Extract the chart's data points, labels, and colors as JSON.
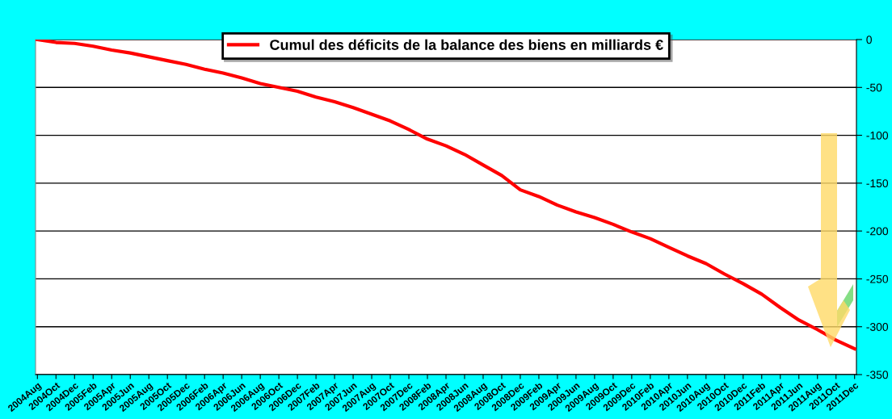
{
  "chart_data": {
    "type": "line",
    "categories": [
      "2004Aug",
      "2004Oct",
      "2004Dec",
      "2005Feb",
      "2005Apr",
      "2005Jun",
      "2005Aug",
      "2005Oct",
      "2005Dec",
      "2006Feb",
      "2006Apr",
      "2006Jun",
      "2006Aug",
      "2006Oct",
      "2006Dec",
      "2007Feb",
      "2007Apr",
      "2007Jun",
      "2007Aug",
      "2007Oct",
      "2007Dec",
      "2008Feb",
      "2008Apr",
      "2008Jun",
      "2008Aug",
      "2008Oct",
      "2008Dec",
      "2009Feb",
      "2009Apr",
      "2009Jun",
      "2009Aug",
      "2009Oct",
      "2009Dec",
      "2010Feb",
      "2010Apr",
      "2010Jun",
      "2010Aug",
      "2010Oct",
      "2010Dec",
      "2011Feb",
      "2011Apr",
      "2011Jun",
      "2011Aug",
      "2011Oct",
      "2011Dec"
    ],
    "series": [
      {
        "name": "Cumul des déficits de la balance des biens en milliards €",
        "color": "#ff0000",
        "values": [
          0,
          -3,
          -4,
          -7,
          -11,
          -14,
          -18,
          -22,
          -26,
          -31,
          -35,
          -40,
          -46,
          -50,
          -54,
          -60,
          -65,
          -71,
          -78,
          -85,
          -94,
          -104,
          -111,
          -120,
          -131,
          -142,
          -157,
          -164,
          -173,
          -180,
          -186,
          -193,
          -201,
          -208,
          -217,
          -226,
          -234,
          -245,
          -255,
          -266,
          -280,
          -293,
          -303,
          -314,
          -323
        ]
      }
    ],
    "ylim": [
      -350,
      0
    ],
    "yticks": [
      -350,
      -300,
      -250,
      -200,
      -150,
      -100,
      -50,
      0
    ],
    "grid": "y",
    "legend": "top",
    "marker": "none",
    "line_style": "solid"
  }
}
